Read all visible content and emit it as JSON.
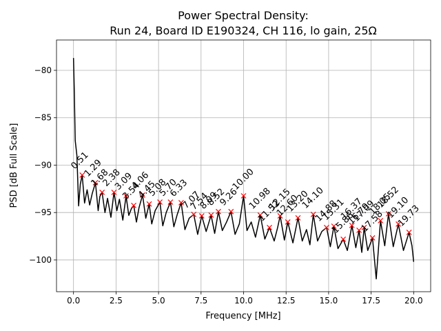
{
  "chart_data": {
    "type": "line",
    "title": "Power Spectral Density:",
    "subtitle": "Run 24, Board ID E190324, CH 116, lo gain, 25Ω",
    "xlabel": "Frequency [MHz]",
    "ylabel": "PSD [dB Full Scale]",
    "xlim": [
      -1,
      21
    ],
    "ylim": [
      -103.35,
      -76.8
    ],
    "xticks": [
      {
        "value": 0,
        "label": "0.0"
      },
      {
        "value": 2.5,
        "label": "2.5"
      },
      {
        "value": 5,
        "label": "5.0"
      },
      {
        "value": 7.5,
        "label": "7.5"
      },
      {
        "value": 10,
        "label": "10.0"
      },
      {
        "value": 12.5,
        "label": "12.5"
      },
      {
        "value": 15,
        "label": "15.0"
      },
      {
        "value": 17.5,
        "label": "17.5"
      },
      {
        "value": 20,
        "label": "20.0"
      }
    ],
    "yticks": [
      {
        "value": -100,
        "label": "−100"
      },
      {
        "value": -95,
        "label": "−95"
      },
      {
        "value": -90,
        "label": "−90"
      },
      {
        "value": -85,
        "label": "−85"
      },
      {
        "value": -80,
        "label": "−80"
      }
    ],
    "grid": true,
    "series": [
      {
        "color": "#000000",
        "x": [
          0,
          0.05,
          0.1,
          0.2,
          0.3,
          0.4,
          0.51,
          0.65,
          0.8,
          0.95,
          1.1,
          1.29,
          1.45,
          1.55,
          1.68,
          1.85,
          2.0,
          2.2,
          2.38,
          2.55,
          2.7,
          2.9,
          3.09,
          3.25,
          3.4,
          3.54,
          3.7,
          3.85,
          4.06,
          4.25,
          4.45,
          4.6,
          4.8,
          5.08,
          5.25,
          5.45,
          5.7,
          5.9,
          6.1,
          6.33,
          6.55,
          6.8,
          7.07,
          7.3,
          7.54,
          7.8,
          8.09,
          8.3,
          8.52,
          8.75,
          9.0,
          9.26,
          9.5,
          9.75,
          10.0,
          10.2,
          10.45,
          10.7,
          10.98,
          11.25,
          11.52,
          11.8,
          12.0,
          12.15,
          12.4,
          12.6,
          12.9,
          13.2,
          13.45,
          13.7,
          13.9,
          14.1,
          14.35,
          14.6,
          14.88,
          15.1,
          15.31,
          15.55,
          15.86,
          16.1,
          16.37,
          16.6,
          16.79,
          16.95,
          17.09,
          17.3,
          17.58,
          17.8,
          18.05,
          18.3,
          18.52,
          18.8,
          19.1,
          19.4,
          19.73,
          19.9,
          20.0
        ],
        "values": [
          -78.7,
          -82.5,
          -87.4,
          -89.0,
          -94.3,
          -92.0,
          -91.05,
          -94.0,
          -92.6,
          -94.2,
          -93.0,
          -91.85,
          -94.8,
          -93.3,
          -92.87,
          -95.0,
          -93.5,
          -95.5,
          -92.87,
          -94.8,
          -93.6,
          -95.8,
          -93.24,
          -95.3,
          -94.6,
          -94.25,
          -96.0,
          -94.5,
          -93.16,
          -95.6,
          -94.1,
          -96.2,
          -94.8,
          -93.9,
          -96.4,
          -95.0,
          -93.9,
          -96.5,
          -95.2,
          -93.96,
          -96.8,
          -95.6,
          -95.2,
          -97.3,
          -95.35,
          -97.0,
          -95.27,
          -97.2,
          -94.9,
          -96.9,
          -96.0,
          -94.9,
          -97.3,
          -96.2,
          -93.24,
          -96.9,
          -96.0,
          -97.6,
          -95.27,
          -97.8,
          -96.58,
          -98.0,
          -96.6,
          -95.35,
          -97.9,
          -96.0,
          -98.2,
          -95.56,
          -98.0,
          -96.8,
          -98.4,
          -95.2,
          -98.0,
          -97.0,
          -96.58,
          -98.6,
          -96.44,
          -98.8,
          -97.82,
          -99.0,
          -96.36,
          -98.7,
          -96.87,
          -99.2,
          -96.58,
          -99.0,
          -97.67,
          -102.0,
          -95.85,
          -98.5,
          -95.13,
          -98.6,
          -96.22,
          -99.0,
          -97.09,
          -98.5,
          -100.2
        ]
      },
      {
        "color": "#ff0000",
        "marker": "x",
        "x": [
          0.51,
          1.29,
          1.68,
          2.38,
          3.09,
          3.54,
          4.06,
          4.45,
          5.08,
          5.7,
          6.33,
          7.07,
          7.54,
          8.09,
          8.52,
          9.26,
          10.0,
          10.98,
          11.52,
          12.15,
          12.6,
          13.2,
          14.1,
          14.88,
          15.31,
          15.86,
          16.37,
          16.79,
          17.09,
          17.58,
          18.05,
          18.52,
          19.1,
          19.73
        ],
        "values": [
          -91.05,
          -91.85,
          -92.87,
          -92.87,
          -93.24,
          -94.25,
          -93.16,
          -94.1,
          -93.9,
          -93.9,
          -93.96,
          -95.2,
          -95.35,
          -95.27,
          -94.9,
          -94.9,
          -93.24,
          -95.27,
          -96.58,
          -95.35,
          -96.0,
          -95.56,
          -95.2,
          -96.58,
          -96.44,
          -97.82,
          -96.36,
          -96.87,
          -96.58,
          -97.67,
          -95.85,
          -95.13,
          -96.22,
          -97.09
        ],
        "labels": [
          "0.51",
          "1.29",
          "1.68",
          "2.38",
          "3.09",
          "3.54",
          "4.06",
          "4.45",
          "5.08",
          "5.70",
          "6.33",
          "7.07",
          "7.54",
          "8.09",
          "8.52",
          "9.26",
          "10.00",
          "10.98",
          "11.52",
          "12.15",
          "12.60",
          "13.20",
          "14.10",
          "14.88",
          "15.31",
          "15.86",
          "16.37",
          "16.79",
          "17.09",
          "17.58",
          "18.05",
          "18.52",
          "19.10",
          "19.73"
        ]
      }
    ]
  }
}
